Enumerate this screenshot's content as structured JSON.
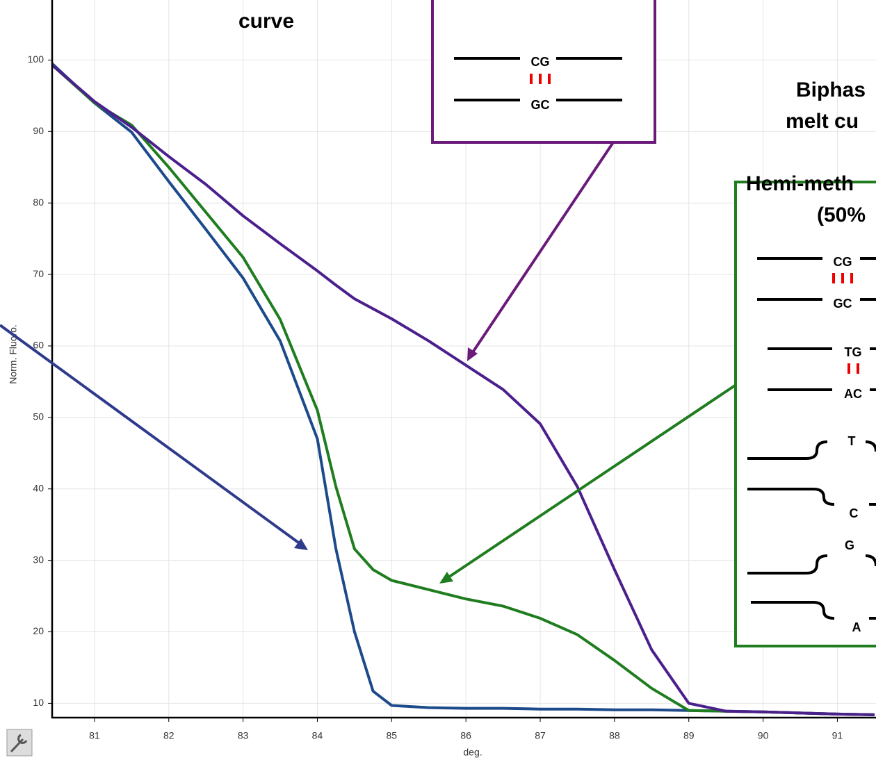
{
  "chart_data": {
    "type": "line",
    "x_label": "deg.",
    "y_label": "Norm. Fluoro.",
    "x": [
      80.43,
      81,
      81.5,
      82,
      82.5,
      83,
      83.5,
      84,
      84.25,
      84.5,
      84.75,
      85,
      85.5,
      86,
      86.5,
      87,
      87.5,
      88,
      88.5,
      89,
      89.5,
      90,
      91,
      91.5
    ],
    "series": [
      {
        "color": "#1c4a8a",
        "values": [
          99.5,
          94,
          89.9,
          83,
          76.3,
          69.5,
          60.7,
          47,
          31.6,
          20,
          11.7,
          9.7,
          9.4,
          9.3,
          9.3,
          9.2,
          9.2,
          9.1,
          9.1,
          9,
          8.9,
          8.8,
          8.5,
          8.4
        ]
      },
      {
        "color": "#1f7d1f",
        "values": [
          99.3,
          94,
          90.9,
          85,
          78.7,
          72.4,
          63.7,
          51,
          40.3,
          31.6,
          28.7,
          27.2,
          25.9,
          24.6,
          23.6,
          21.9,
          19.6,
          16,
          12.1,
          9,
          8.9,
          8.8,
          8.5,
          8.4
        ]
      },
      {
        "color": "#4b1f8c",
        "values": [
          99.3,
          94.2,
          90.6,
          86.5,
          82.6,
          78.2,
          74.3,
          70.5,
          68.5,
          66.6,
          65.2,
          63.8,
          60.7,
          57.3,
          53.9,
          49.1,
          40.3,
          28.7,
          17.5,
          10,
          8.9,
          8.8,
          8.5,
          8.4
        ]
      }
    ],
    "xlim": [
      80.43,
      91.52
    ],
    "ylim": [
      8,
      108.4
    ],
    "xticks": [
      81,
      82,
      83,
      84,
      85,
      86,
      87,
      88,
      89,
      90,
      91
    ],
    "yticks": [
      10,
      20,
      30,
      40,
      50,
      60,
      70,
      80,
      90,
      100
    ],
    "grid": true,
    "annotations": [
      "curve",
      "Biphas",
      "melt cu",
      "Hemi-meth",
      "(50%"
    ],
    "base_labels": [
      "CG",
      "GC",
      "CG",
      "GC",
      "TG",
      "AC",
      "T",
      "C",
      "G",
      "A"
    ]
  }
}
